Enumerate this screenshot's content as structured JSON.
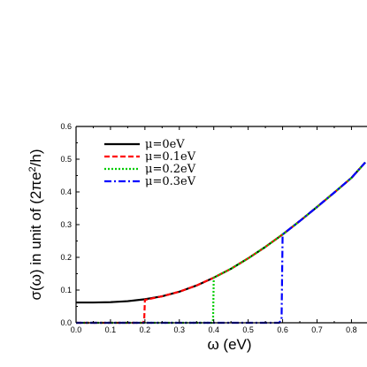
{
  "chart_data": {
    "type": "line",
    "xlabel": "ω (eV)",
    "ylabel": "σ(ω) in unit of (2πe²/h)",
    "ylabel_parts": {
      "pre": "σ(ω) in unit of (2πe",
      "sup": "2",
      "post": "/h)"
    },
    "xlim": [
      0.0,
      0.84
    ],
    "ylim": [
      0.0,
      0.6
    ],
    "x_ticks": [
      "0.0",
      "0.1",
      "0.2",
      "0.3",
      "0.4",
      "0.5",
      "0.6",
      "0.7",
      "0.8"
    ],
    "y_ticks": [
      "0.0",
      "0.1",
      "0.2",
      "0.3",
      "0.4",
      "0.5",
      "0.6"
    ],
    "legend_position": "top-left",
    "series": [
      {
        "name": "μ=0eV",
        "color": "#000000",
        "style": "solid",
        "points": [
          [
            0.0,
            0.062
          ],
          [
            0.05,
            0.062
          ],
          [
            0.1,
            0.063
          ],
          [
            0.15,
            0.066
          ],
          [
            0.2,
            0.072
          ],
          [
            0.25,
            0.081
          ],
          [
            0.3,
            0.095
          ],
          [
            0.35,
            0.114
          ],
          [
            0.4,
            0.138
          ],
          [
            0.45,
            0.165
          ],
          [
            0.5,
            0.197
          ],
          [
            0.55,
            0.232
          ],
          [
            0.6,
            0.27
          ],
          [
            0.65,
            0.311
          ],
          [
            0.7,
            0.354
          ],
          [
            0.75,
            0.398
          ],
          [
            0.8,
            0.443
          ],
          [
            0.84,
            0.49
          ]
        ]
      },
      {
        "name": "μ=0.1eV",
        "color": "#ff0000",
        "style": "dash",
        "points": [
          [
            0.0,
            0.0
          ],
          [
            0.195,
            0.0
          ],
          [
            0.198,
            0.01
          ],
          [
            0.2,
            0.07
          ],
          [
            0.25,
            0.081
          ],
          [
            0.3,
            0.095
          ],
          [
            0.35,
            0.114
          ],
          [
            0.4,
            0.138
          ],
          [
            0.45,
            0.165
          ],
          [
            0.5,
            0.197
          ],
          [
            0.55,
            0.232
          ],
          [
            0.6,
            0.27
          ],
          [
            0.65,
            0.311
          ],
          [
            0.7,
            0.354
          ],
          [
            0.75,
            0.398
          ],
          [
            0.8,
            0.443
          ],
          [
            0.84,
            0.49
          ]
        ]
      },
      {
        "name": "μ=0.2eV",
        "color": "#00cc00",
        "style": "dot",
        "points": [
          [
            0.0,
            0.0
          ],
          [
            0.395,
            0.0
          ],
          [
            0.398,
            0.01
          ],
          [
            0.4,
            0.138
          ],
          [
            0.45,
            0.165
          ],
          [
            0.5,
            0.197
          ],
          [
            0.55,
            0.232
          ],
          [
            0.6,
            0.27
          ],
          [
            0.65,
            0.311
          ],
          [
            0.7,
            0.354
          ],
          [
            0.75,
            0.398
          ],
          [
            0.8,
            0.443
          ],
          [
            0.84,
            0.49
          ]
        ]
      },
      {
        "name": "μ=0.3eV",
        "color": "#0000ff",
        "style": "dashdot",
        "points": [
          [
            0.0,
            0.0
          ],
          [
            0.59,
            0.0
          ],
          [
            0.597,
            0.01
          ],
          [
            0.6,
            0.27
          ],
          [
            0.65,
            0.311
          ],
          [
            0.7,
            0.354
          ],
          [
            0.75,
            0.398
          ],
          [
            0.8,
            0.443
          ],
          [
            0.84,
            0.49
          ]
        ]
      }
    ]
  }
}
